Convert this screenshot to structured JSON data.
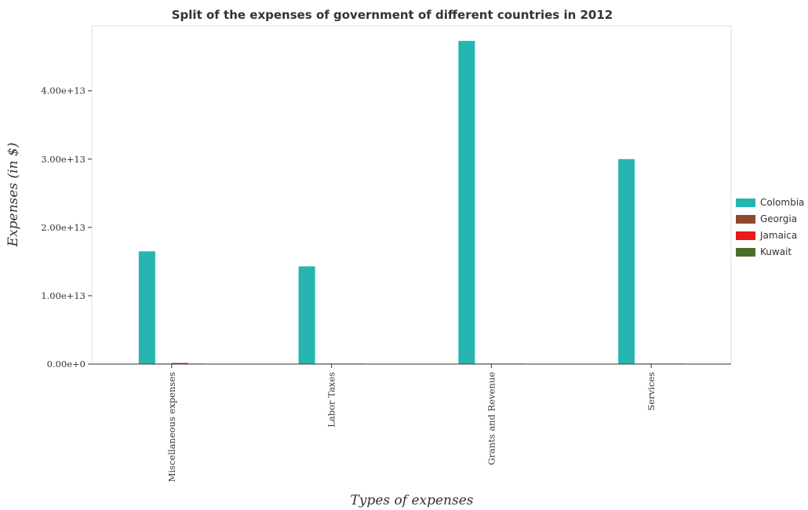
{
  "chart_data": {
    "type": "bar",
    "title": "Split of the expenses of government of different countries in 2012",
    "xlabel": "Types of expenses",
    "ylabel": "Expenses (in $)",
    "categories": [
      "Miscellaneous expenses",
      "Labor Taxes",
      "Grants and Revenue",
      "Services"
    ],
    "ylim": [
      0,
      49500000000000
    ],
    "yticks": [
      0,
      10000000000000,
      20000000000000,
      30000000000000,
      40000000000000
    ],
    "ytick_labels": [
      "0.00e+0",
      "1.00e+13",
      "2.00e+13",
      "3.00e+13",
      "4.00e+13"
    ],
    "series": [
      {
        "name": "Colombia",
        "color": "#26b5b0",
        "values": [
          16500000000000,
          14300000000000,
          47300000000000,
          30000000000000
        ]
      },
      {
        "name": "Georgia",
        "color": "#8c4a2e",
        "values": [
          5000000000,
          3000000000,
          8000000000,
          4000000000
        ]
      },
      {
        "name": "Jamaica",
        "color": "#e81b1b",
        "values": [
          160000000000,
          35000000000,
          50000000000,
          30000000000
        ]
      },
      {
        "name": "Kuwait",
        "color": "#4c6e2a",
        "values": [
          4000000000,
          1500000000,
          40000000000,
          2000000000
        ]
      }
    ],
    "legend_position": "right",
    "grid": false
  }
}
